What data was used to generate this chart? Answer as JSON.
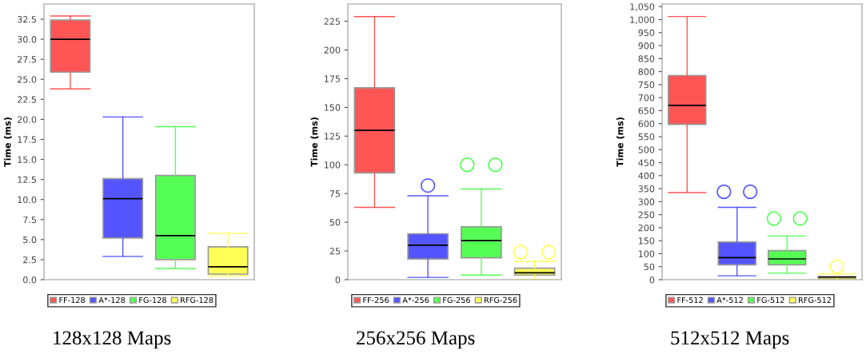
{
  "chart_data": [
    {
      "type": "box",
      "title": "128x128 Maps",
      "ylabel": "Time (ms)",
      "categories": [
        null
      ],
      "ylim": [
        0,
        34.4
      ],
      "yticks": [
        {
          "value": 0,
          "label": "0.0"
        },
        2.5,
        {
          "value": 5,
          "label": "5.0"
        },
        7.5,
        {
          "value": 10,
          "label": "10.0"
        },
        12.5,
        {
          "value": 15,
          "label": "15.0"
        },
        17.5,
        {
          "value": 20,
          "label": "20.0"
        },
        22.5,
        {
          "value": 25,
          "label": "25.0"
        },
        27.5,
        {
          "value": 30,
          "label": "30.0"
        },
        32.5
      ],
      "legend": "bottom",
      "grid": false,
      "series": [
        {
          "name": "FF-128",
          "color": "#ff5555",
          "boxes": [
            {
              "low": 23.8,
              "q1": 25.9,
              "median": 30.0,
              "q3": 32.4,
              "high": 32.9
            }
          ]
        },
        {
          "name": "A*-128",
          "color": "#5555ff",
          "boxes": [
            {
              "low": 2.9,
              "q1": 5.2,
              "median": 10.1,
              "q3": 12.6,
              "high": 20.3
            }
          ]
        },
        {
          "name": "FG-128",
          "color": "#55ff55",
          "boxes": [
            {
              "low": 1.4,
              "q1": 2.5,
              "median": 5.5,
              "q3": 13.0,
              "high": 19.1
            }
          ]
        },
        {
          "name": "RFG-128",
          "color": "#ffff55",
          "boxes": [
            {
              "low": 0.5,
              "q1": 0.7,
              "median": 1.6,
              "q3": 4.1,
              "high": 5.8
            }
          ]
        }
      ]
    },
    {
      "type": "box",
      "title": "256x256 Maps",
      "ylabel": "Time (ms)",
      "categories": [
        null
      ],
      "ylim": [
        0,
        240
      ],
      "yticks": [
        0,
        25,
        50,
        75,
        100,
        125,
        150,
        175,
        200,
        225
      ],
      "legend": "bottom",
      "grid": false,
      "series": [
        {
          "name": "FF-256",
          "color": "#ff5555",
          "boxes": [
            {
              "low": 63,
              "q1": 93,
              "median": 130,
              "q3": 167,
              "high": 229
            }
          ]
        },
        {
          "name": "A*-256",
          "color": "#5555ff",
          "boxes": [
            {
              "low": 2,
              "q1": 18,
              "median": 30,
              "q3": 40,
              "high": 73,
              "outliers": [
                82
              ]
            }
          ]
        },
        {
          "name": "FG-256",
          "color": "#55ff55",
          "boxes": [
            {
              "low": 4,
              "q1": 19,
              "median": 34,
              "q3": 46,
              "high": 79,
              "outliers": [
                100,
                100
              ]
            }
          ]
        },
        {
          "name": "RFG-256",
          "color": "#ffff55",
          "boxes": [
            {
              "low": 0,
              "q1": 4,
              "median": 6,
              "q3": 10,
              "high": 16,
              "outliers": [
                24,
                24
              ]
            }
          ]
        }
      ]
    },
    {
      "type": "box",
      "title": "512x512 Maps",
      "ylabel": "Time (ms)",
      "categories": [
        null
      ],
      "ylim": [
        0,
        1060
      ],
      "yticks": [
        0,
        50,
        100,
        150,
        200,
        250,
        300,
        350,
        400,
        450,
        500,
        550,
        600,
        650,
        700,
        750,
        800,
        850,
        900,
        950,
        {
          "value": 1000,
          "label": "1,000"
        },
        {
          "value": 1050,
          "label": "1,050"
        }
      ],
      "legend": "bottom",
      "grid": false,
      "series": [
        {
          "name": "FF-512",
          "color": "#ff5555",
          "boxes": [
            {
              "low": 335,
              "q1": 597,
              "median": 670,
              "q3": 785,
              "high": 1012
            }
          ]
        },
        {
          "name": "A*-512",
          "color": "#5555ff",
          "boxes": [
            {
              "low": 15,
              "q1": 57,
              "median": 85,
              "q3": 145,
              "high": 278,
              "outliers": [
                338,
                338
              ]
            }
          ]
        },
        {
          "name": "FG-512",
          "color": "#55ff55",
          "boxes": [
            {
              "low": 25,
              "q1": 57,
              "median": 80,
              "q3": 112,
              "high": 168,
              "outliers": [
                235,
                235
              ]
            }
          ]
        },
        {
          "name": "RFG-512",
          "color": "#ffff55",
          "boxes": [
            {
              "low": 2,
              "q1": 5,
              "median": 10,
              "q3": 12,
              "high": 22,
              "outliers": [
                50
              ]
            }
          ]
        }
      ]
    }
  ]
}
